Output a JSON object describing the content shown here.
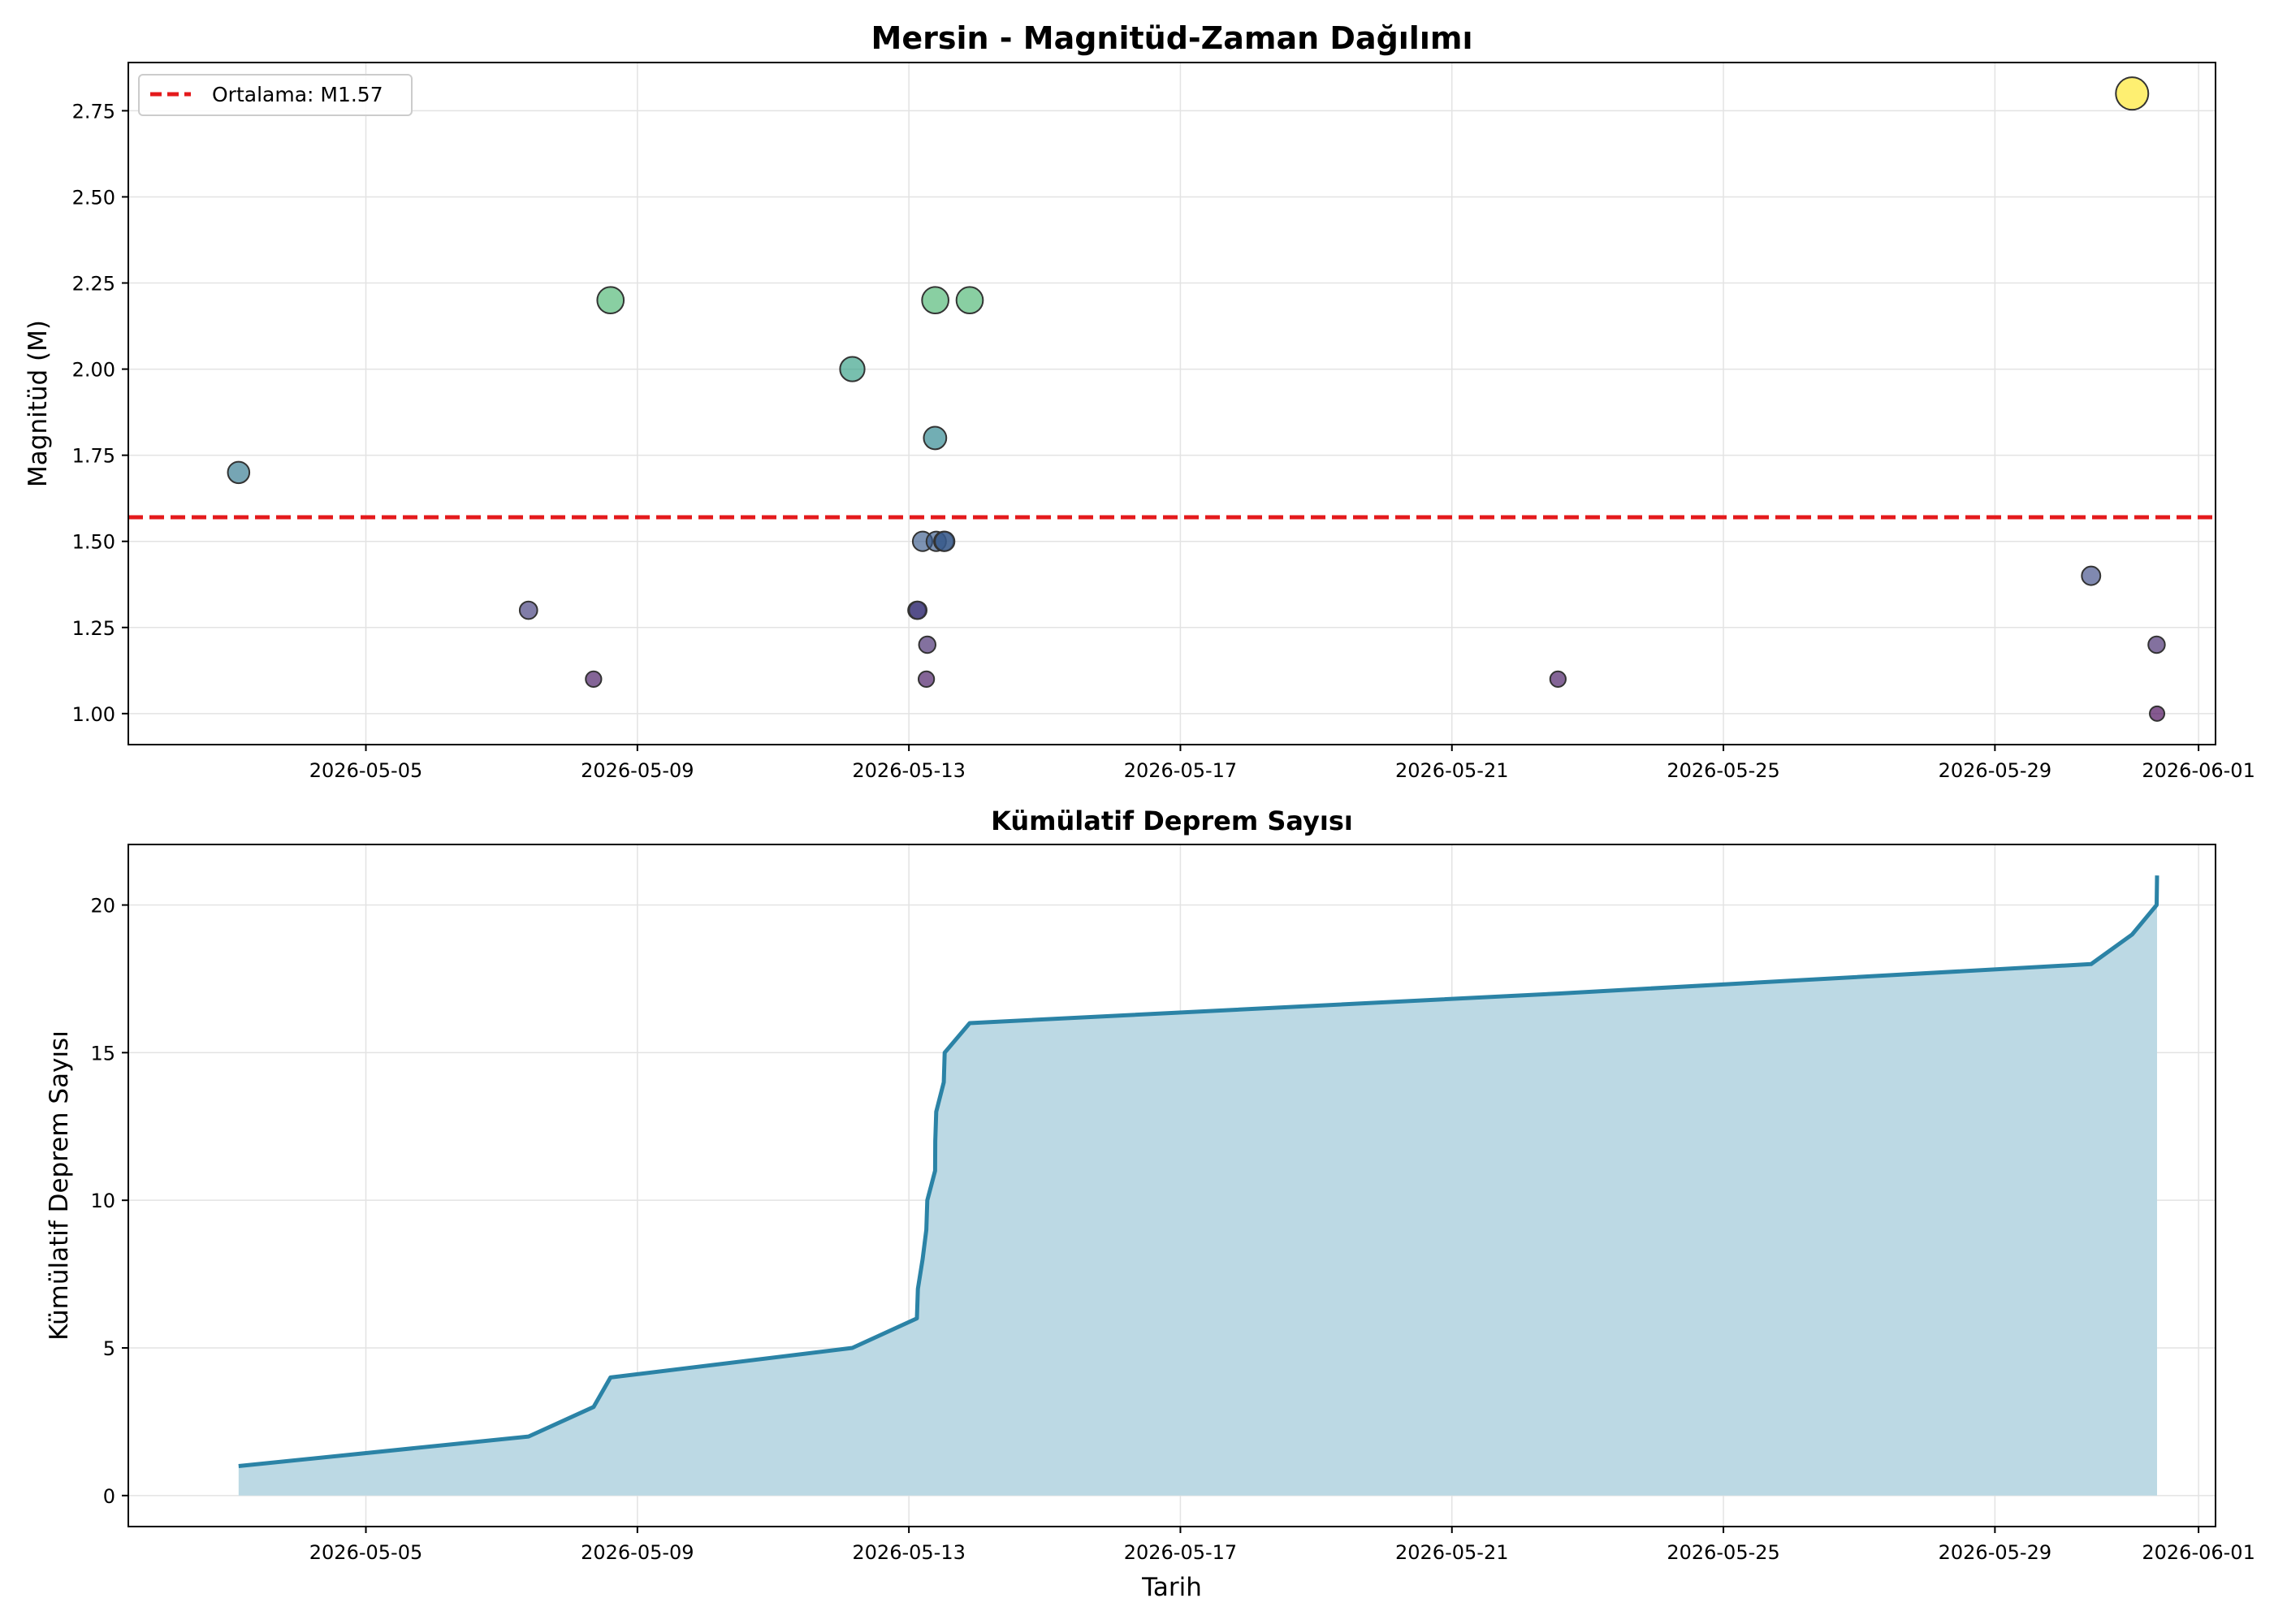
{
  "colors": {
    "mean_line": "#e41a1c",
    "cumulative_line": "#2b83a6",
    "cumulative_fill": "#bcd9e4",
    "grid": "#e3e3e3",
    "marker_edge": "#333333",
    "colormap": "viridis"
  },
  "chart_data": [
    {
      "type": "scatter",
      "title": "Mersin - Magnitüd-Zaman Dağılımı",
      "xlabel": "",
      "ylabel": "Magnitüd (M)",
      "x_axis": "date",
      "xlim": [
        "2026-05-01T12:00",
        "2026-06-01T06:00"
      ],
      "ylim": [
        0.91,
        2.89
      ],
      "xticks": [
        "2026-05-05",
        "2026-05-09",
        "2026-05-13",
        "2026-05-17",
        "2026-05-21",
        "2026-05-25",
        "2026-05-29",
        "2026-06-01"
      ],
      "yticks": [
        "1.00",
        "1.25",
        "1.50",
        "1.75",
        "2.00",
        "2.25",
        "2.50",
        "2.75"
      ],
      "ytick_values": [
        1.0,
        1.25,
        1.5,
        1.75,
        2.0,
        2.25,
        2.5,
        2.75
      ],
      "grid": true,
      "legend": {
        "position": "top-left",
        "entries": [
          "Ortalama: M1.57"
        ]
      },
      "mean": 1.57,
      "color_by": "magnitude",
      "size_by": "magnitude",
      "points": [
        {
          "x": "2026-05-03T03:00",
          "y": 1.7
        },
        {
          "x": "2026-05-07T09:30",
          "y": 1.3
        },
        {
          "x": "2026-05-08T08:30",
          "y": 1.1
        },
        {
          "x": "2026-05-08T14:30",
          "y": 2.2
        },
        {
          "x": "2026-05-12T04:00",
          "y": 2.0
        },
        {
          "x": "2026-05-13T02:50",
          "y": 1.3
        },
        {
          "x": "2026-05-13T03:10",
          "y": 1.3
        },
        {
          "x": "2026-05-13T04:50",
          "y": 1.5
        },
        {
          "x": "2026-05-13T06:10",
          "y": 1.1
        },
        {
          "x": "2026-05-13T06:30",
          "y": 1.2
        },
        {
          "x": "2026-05-13T09:15",
          "y": 1.8
        },
        {
          "x": "2026-05-13T09:20",
          "y": 2.2
        },
        {
          "x": "2026-05-13T09:40",
          "y": 1.5
        },
        {
          "x": "2026-05-13T12:20",
          "y": 1.5
        },
        {
          "x": "2026-05-13T12:40",
          "y": 1.5
        },
        {
          "x": "2026-05-13T21:30",
          "y": 2.2
        },
        {
          "x": "2026-05-22T13:30",
          "y": 1.1
        },
        {
          "x": "2026-05-30T10:00",
          "y": 1.4
        },
        {
          "x": "2026-05-31T00:30",
          "y": 2.8
        },
        {
          "x": "2026-05-31T09:10",
          "y": 1.2
        },
        {
          "x": "2026-05-31T09:20",
          "y": 1.0
        }
      ]
    },
    {
      "type": "area",
      "title": "Kümülatif Deprem Sayısı",
      "xlabel": "Tarih",
      "ylabel": "Kümülatif Deprem Sayısı",
      "x_axis": "date",
      "xlim": [
        "2026-05-01T12:00",
        "2026-06-01T06:00"
      ],
      "ylim": [
        -1.05,
        22.05
      ],
      "xticks": [
        "2026-05-05",
        "2026-05-09",
        "2026-05-13",
        "2026-05-17",
        "2026-05-21",
        "2026-05-25",
        "2026-05-29",
        "2026-06-01"
      ],
      "yticks": [
        "0",
        "5",
        "10",
        "15",
        "20"
      ],
      "ytick_values": [
        0,
        5,
        10,
        15,
        20
      ],
      "grid": true,
      "series": [
        {
          "x": [
            "2026-05-03T03:00",
            "2026-05-07T09:30",
            "2026-05-08T08:30",
            "2026-05-08T14:30",
            "2026-05-12T04:00",
            "2026-05-13T02:50",
            "2026-05-13T03:10",
            "2026-05-13T04:50",
            "2026-05-13T06:10",
            "2026-05-13T06:30",
            "2026-05-13T09:15",
            "2026-05-13T09:20",
            "2026-05-13T09:40",
            "2026-05-13T12:20",
            "2026-05-13T12:40",
            "2026-05-13T21:30",
            "2026-05-22T13:30",
            "2026-05-30T10:00",
            "2026-05-31T00:30",
            "2026-05-31T09:10",
            "2026-05-31T09:20"
          ],
          "values": [
            1,
            2,
            3,
            4,
            5,
            6,
            7,
            8,
            9,
            10,
            11,
            12,
            13,
            14,
            15,
            16,
            17,
            18,
            19,
            20,
            21
          ]
        }
      ]
    }
  ]
}
